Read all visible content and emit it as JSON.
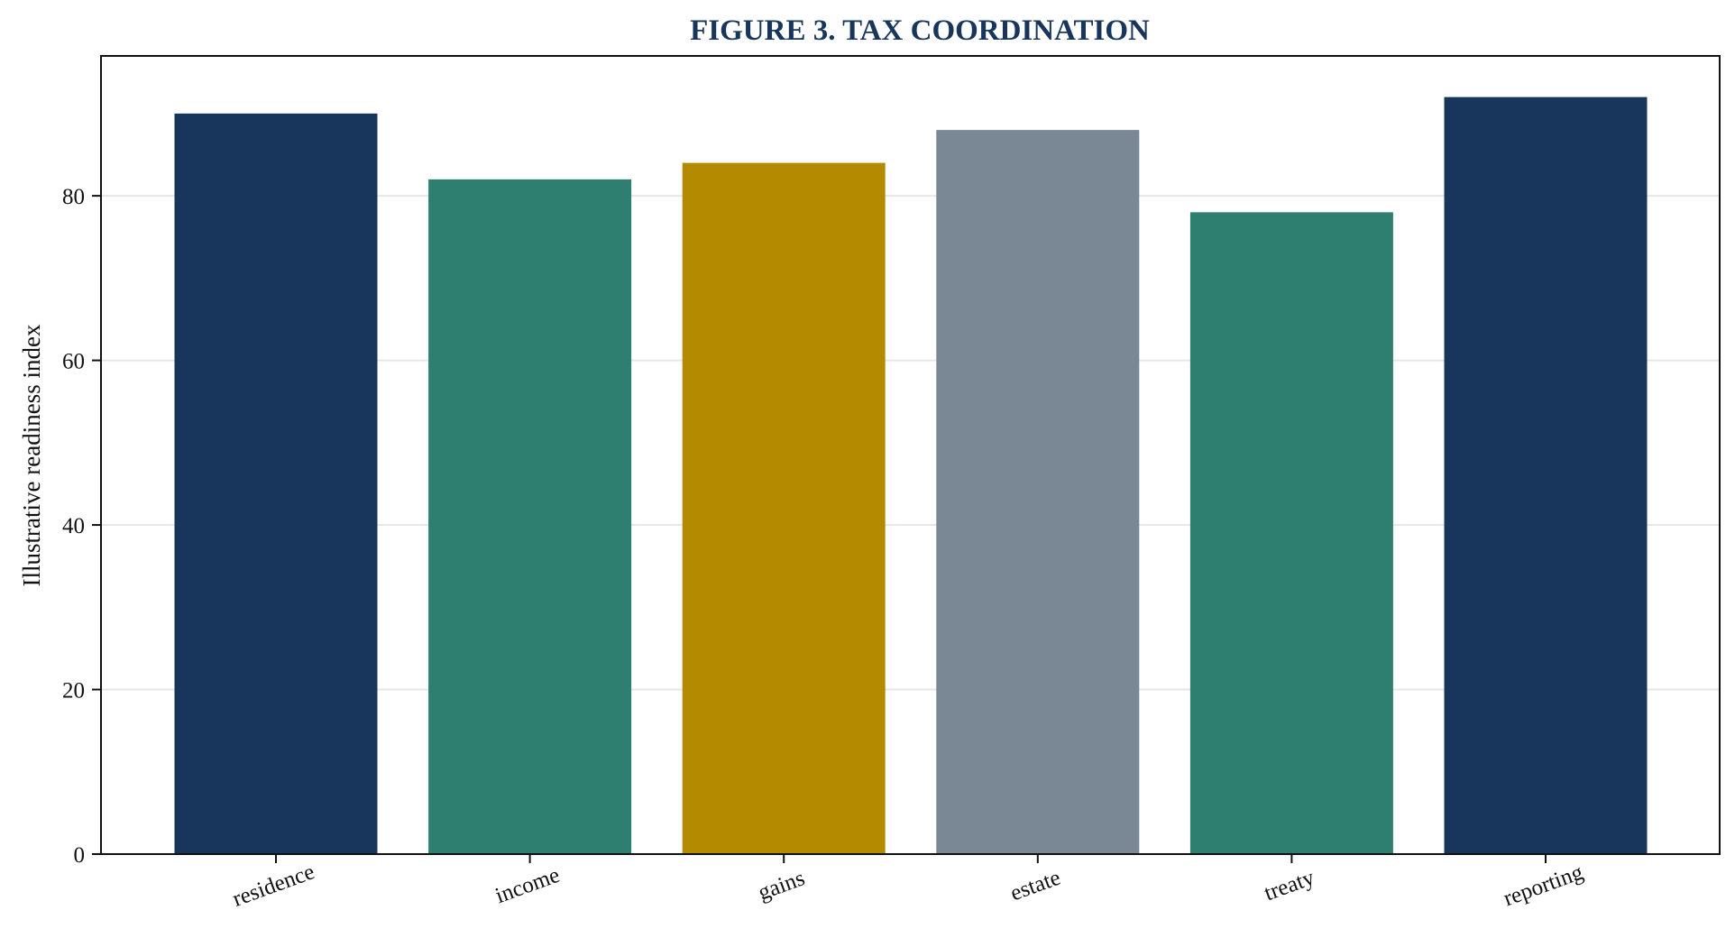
{
  "chart_data": {
    "type": "bar",
    "title": "FIGURE 3. TAX COORDINATION",
    "xlabel": "",
    "ylabel": "Illustrative readiness index",
    "categories": [
      "residence",
      "income",
      "gains",
      "estate",
      "treaty",
      "reporting"
    ],
    "values": [
      90,
      82,
      84,
      88,
      78,
      92
    ],
    "bar_colors": [
      "#18365c",
      "#2e7f6f",
      "#b38a00",
      "#7a8794",
      "#2e7f6f",
      "#18365c"
    ],
    "ylim": [
      0,
      97
    ],
    "yticks": [
      0,
      20,
      40,
      60,
      80
    ],
    "grid": true,
    "legend": "none"
  },
  "colors": {
    "title": "#18365c",
    "grid": "#e6e6e6",
    "axis": "#111111"
  }
}
